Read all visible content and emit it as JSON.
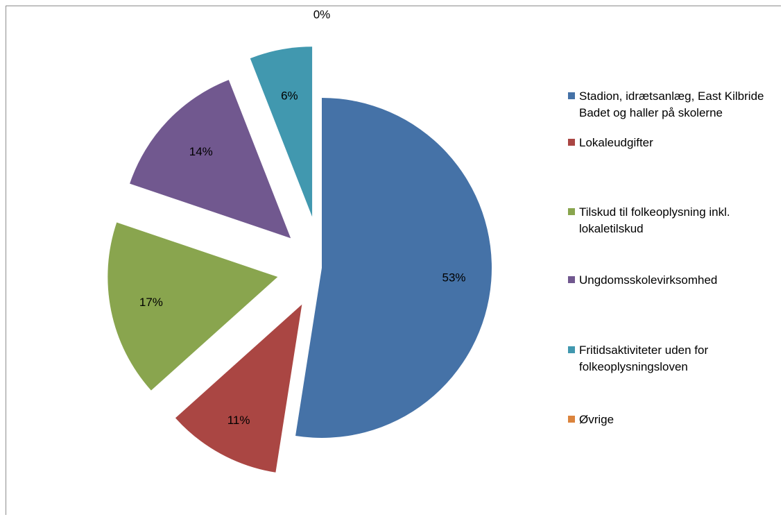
{
  "chart_data": {
    "type": "pie",
    "title": "",
    "legend_position": "right",
    "slices": [
      {
        "name": "Stadion, idrætsanlæg, East Kilbride Badet og haller på skolerne",
        "value": 53,
        "label": "53%",
        "color": "#4572a7"
      },
      {
        "name": "Lokaleudgifter",
        "value": 11,
        "label": "11%",
        "color": "#aa4643"
      },
      {
        "name": "Tilskud til folkeoplysning inkl. lokaletilskud",
        "value": 17,
        "label": "17%",
        "color": "#89a54e"
      },
      {
        "name": "Ungdomsskolevirksomhed",
        "value": 14,
        "label": "14%",
        "color": "#71588f"
      },
      {
        "name": "Fritidsaktiviteter uden for folkeoplysningsloven",
        "value": 6,
        "label": "6%",
        "color": "#4198af"
      },
      {
        "name": "Øvrige",
        "value": 0,
        "label": "0%",
        "color": "#db843d"
      }
    ]
  }
}
